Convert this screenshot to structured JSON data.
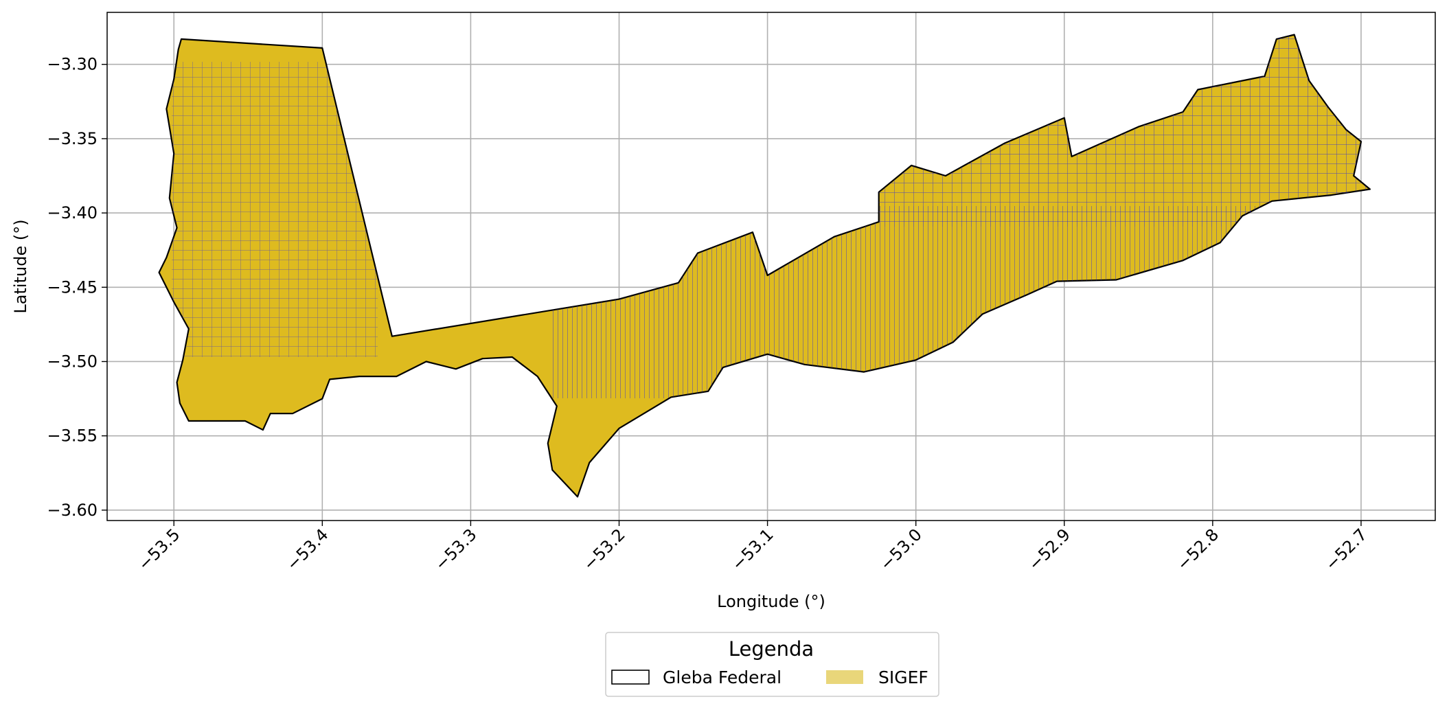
{
  "chart_data": {
    "type": "map",
    "xlabel": "Longitude (°)",
    "ylabel": "Latitude (°)",
    "xlim": [
      -53.545,
      -52.65
    ],
    "ylim": [
      -3.607,
      -3.265
    ],
    "x_ticks": [
      -53.5,
      -53.4,
      -53.3,
      -53.2,
      -53.1,
      -53.0,
      -52.9,
      -52.8,
      -52.7
    ],
    "x_tick_labels": [
      "−53.5",
      "−53.4",
      "−53.3",
      "−53.2",
      "−53.1",
      "−53.0",
      "−52.9",
      "−52.8",
      "−52.7"
    ],
    "y_ticks": [
      -3.3,
      -3.35,
      -3.4,
      -3.45,
      -3.5,
      -3.55,
      -3.6
    ],
    "y_tick_labels": [
      "−3.30",
      "−3.35",
      "−3.40",
      "−3.45",
      "−3.50",
      "−3.55",
      "−3.60"
    ],
    "grid": true,
    "legend": {
      "title": "Legenda",
      "placement": "bottom-center",
      "entries": [
        {
          "label": "Gleba Federal",
          "style": "outline",
          "color": "#000000"
        },
        {
          "label": "SIGEF",
          "style": "filled",
          "color": "#E9D67A"
        }
      ]
    },
    "colors": {
      "gleba_fill": "#DEBB1F",
      "gleba_edge": "#000000",
      "sigef_edge": "#1F1FE6",
      "grid": "#B0B0B0"
    },
    "gleba_polygons": [
      [
        [
          -53.495,
          -3.283
        ],
        [
          -53.4,
          -3.289
        ],
        [
          -53.353,
          -3.483
        ],
        [
          -53.2,
          -3.458
        ],
        [
          -53.16,
          -3.447
        ],
        [
          -53.147,
          -3.427
        ],
        [
          -53.11,
          -3.413
        ],
        [
          -53.1,
          -3.442
        ],
        [
          -53.055,
          -3.416
        ],
        [
          -53.025,
          -3.406
        ],
        [
          -53.025,
          -3.386
        ],
        [
          -53.003,
          -3.368
        ],
        [
          -52.98,
          -3.375
        ],
        [
          -52.94,
          -3.353
        ],
        [
          -52.9,
          -3.336
        ],
        [
          -52.895,
          -3.362
        ],
        [
          -52.85,
          -3.342
        ],
        [
          -52.82,
          -3.332
        ],
        [
          -52.81,
          -3.317
        ],
        [
          -52.765,
          -3.308
        ],
        [
          -52.757,
          -3.283
        ],
        [
          -52.745,
          -3.28
        ],
        [
          -52.735,
          -3.311
        ],
        [
          -52.722,
          -3.329
        ],
        [
          -52.71,
          -3.344
        ],
        [
          -52.7,
          -3.352
        ],
        [
          -52.705,
          -3.375
        ],
        [
          -52.694,
          -3.384
        ],
        [
          -52.72,
          -3.388
        ],
        [
          -52.76,
          -3.392
        ],
        [
          -52.78,
          -3.402
        ],
        [
          -52.795,
          -3.42
        ],
        [
          -52.82,
          -3.432
        ],
        [
          -52.865,
          -3.445
        ],
        [
          -52.905,
          -3.446
        ],
        [
          -52.925,
          -3.455
        ],
        [
          -52.955,
          -3.468
        ],
        [
          -52.975,
          -3.487
        ],
        [
          -53.0,
          -3.499
        ],
        [
          -53.035,
          -3.507
        ],
        [
          -53.075,
          -3.502
        ],
        [
          -53.1,
          -3.495
        ],
        [
          -53.13,
          -3.504
        ],
        [
          -53.14,
          -3.52
        ],
        [
          -53.165,
          -3.524
        ],
        [
          -53.2,
          -3.545
        ],
        [
          -53.22,
          -3.568
        ],
        [
          -53.228,
          -3.591
        ],
        [
          -53.245,
          -3.573
        ],
        [
          -53.248,
          -3.555
        ],
        [
          -53.242,
          -3.53
        ],
        [
          -53.255,
          -3.51
        ],
        [
          -53.272,
          -3.497
        ],
        [
          -53.292,
          -3.498
        ],
        [
          -53.31,
          -3.505
        ],
        [
          -53.33,
          -3.5
        ],
        [
          -53.35,
          -3.51
        ],
        [
          -53.375,
          -3.51
        ],
        [
          -53.395,
          -3.512
        ],
        [
          -53.4,
          -3.525
        ],
        [
          -53.42,
          -3.535
        ],
        [
          -53.435,
          -3.535
        ],
        [
          -53.44,
          -3.546
        ],
        [
          -53.452,
          -3.54
        ],
        [
          -53.47,
          -3.54
        ],
        [
          -53.49,
          -3.54
        ],
        [
          -53.496,
          -3.528
        ],
        [
          -53.498,
          -3.514
        ],
        [
          -53.494,
          -3.499
        ],
        [
          -53.49,
          -3.478
        ],
        [
          -53.5,
          -3.46
        ],
        [
          -53.51,
          -3.44
        ],
        [
          -53.505,
          -3.43
        ],
        [
          -53.498,
          -3.41
        ],
        [
          -53.503,
          -3.39
        ],
        [
          -53.5,
          -3.36
        ],
        [
          -53.505,
          -3.33
        ],
        [
          -53.5,
          -3.31
        ],
        [
          -53.497,
          -3.29
        ],
        [
          -53.495,
          -3.283
        ]
      ]
    ]
  }
}
